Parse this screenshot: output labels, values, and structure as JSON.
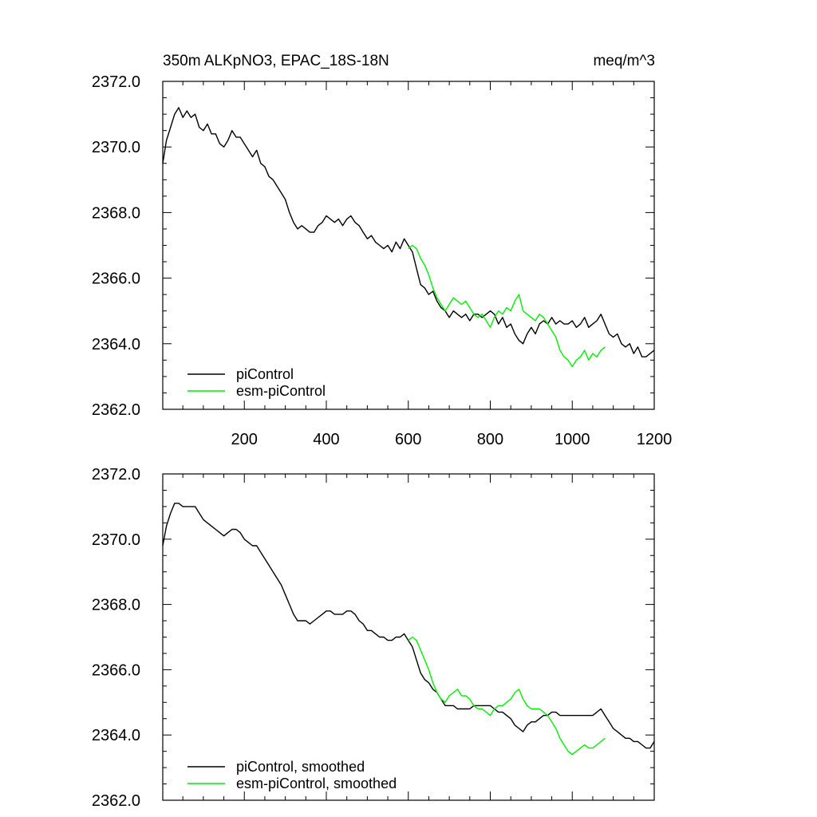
{
  "chart_data": [
    {
      "type": "line",
      "title": "350m ALKpNO3, EPAC_18S-18N",
      "units": "meq/m^3",
      "xlabel": "",
      "ylabel": "",
      "xlim": [
        1,
        1200
      ],
      "ylim": [
        2362.0,
        2372.0
      ],
      "x_ticks": [
        200,
        400,
        600,
        800,
        1000,
        1200
      ],
      "y_ticks": [
        2362.0,
        2364.0,
        2366.0,
        2368.0,
        2370.0,
        2372.0
      ],
      "x_tick_labels": [
        "200",
        "400",
        "600",
        "800",
        "1000",
        "1200"
      ],
      "y_tick_labels": [
        "2362.0",
        "2364.0",
        "2366.0",
        "2368.0",
        "2370.0",
        "2372.0"
      ],
      "grid": false,
      "legend_position": "bottom-left",
      "series": [
        {
          "name": "piControl",
          "color": "#000000",
          "x": [
            1,
            10,
            20,
            30,
            40,
            50,
            60,
            70,
            80,
            90,
            100,
            110,
            120,
            130,
            140,
            150,
            160,
            170,
            180,
            190,
            200,
            210,
            220,
            230,
            240,
            250,
            260,
            270,
            280,
            290,
            300,
            310,
            320,
            330,
            340,
            350,
            360,
            370,
            380,
            390,
            400,
            410,
            420,
            430,
            440,
            450,
            460,
            470,
            480,
            490,
            500,
            510,
            520,
            530,
            540,
            550,
            560,
            570,
            580,
            590,
            600,
            610,
            620,
            630,
            640,
            650,
            660,
            670,
            680,
            690,
            700,
            710,
            720,
            730,
            740,
            750,
            760,
            770,
            780,
            790,
            800,
            810,
            820,
            830,
            840,
            850,
            860,
            870,
            880,
            890,
            900,
            910,
            920,
            930,
            940,
            950,
            960,
            970,
            980,
            990,
            1000,
            1010,
            1020,
            1030,
            1040,
            1050,
            1060,
            1070,
            1080,
            1090,
            1100,
            1110,
            1120,
            1130,
            1140,
            1150,
            1160,
            1170,
            1180,
            1190,
            1200
          ],
          "values": [
            2369.5,
            2370.2,
            2370.6,
            2371.0,
            2371.2,
            2370.9,
            2371.1,
            2370.9,
            2371.0,
            2370.6,
            2370.5,
            2370.7,
            2370.4,
            2370.4,
            2370.1,
            2370.0,
            2370.2,
            2370.5,
            2370.3,
            2370.3,
            2370.1,
            2369.9,
            2369.7,
            2369.9,
            2369.5,
            2369.4,
            2369.1,
            2369.0,
            2368.8,
            2368.6,
            2368.4,
            2368.0,
            2367.7,
            2367.5,
            2367.6,
            2367.5,
            2367.4,
            2367.4,
            2367.6,
            2367.7,
            2367.9,
            2367.8,
            2367.7,
            2367.8,
            2367.6,
            2367.8,
            2367.9,
            2367.7,
            2367.6,
            2367.4,
            2367.2,
            2367.3,
            2367.1,
            2367.0,
            2366.9,
            2367.0,
            2366.8,
            2367.1,
            2366.9,
            2367.2,
            2367.0,
            2366.8,
            2366.3,
            2365.8,
            2365.7,
            2365.5,
            2365.6,
            2365.3,
            2365.1,
            2365.0,
            2364.8,
            2365.0,
            2364.9,
            2364.8,
            2364.9,
            2364.7,
            2364.9,
            2364.9,
            2364.8,
            2364.9,
            2365.0,
            2364.9,
            2364.6,
            2364.8,
            2364.5,
            2364.6,
            2364.3,
            2364.1,
            2364.0,
            2364.3,
            2364.5,
            2364.3,
            2364.6,
            2364.7,
            2364.6,
            2364.8,
            2364.6,
            2364.7,
            2364.6,
            2364.6,
            2364.7,
            2364.5,
            2364.6,
            2364.8,
            2364.5,
            2364.6,
            2364.7,
            2364.9,
            2364.6,
            2364.3,
            2364.2,
            2364.3,
            2364.0,
            2363.9,
            2364.0,
            2363.7,
            2363.9,
            2363.6,
            2363.6,
            2363.7,
            2363.8
          ]
        },
        {
          "name": "esm-piControl",
          "color": "#00ee00",
          "x": [
            600,
            610,
            620,
            630,
            640,
            650,
            660,
            670,
            680,
            690,
            700,
            710,
            720,
            730,
            740,
            750,
            760,
            770,
            780,
            790,
            800,
            810,
            820,
            830,
            840,
            850,
            860,
            870,
            880,
            890,
            900,
            910,
            920,
            930,
            940,
            950,
            960,
            970,
            980,
            990,
            1000,
            1010,
            1020,
            1030,
            1040,
            1050,
            1060,
            1070,
            1080
          ],
          "values": [
            2366.9,
            2367.0,
            2366.9,
            2366.6,
            2366.4,
            2366.1,
            2365.7,
            2365.4,
            2365.2,
            2365.0,
            2365.2,
            2365.4,
            2365.3,
            2365.2,
            2365.3,
            2365.1,
            2364.9,
            2364.8,
            2364.9,
            2364.7,
            2364.5,
            2364.8,
            2365.0,
            2364.9,
            2365.1,
            2365.0,
            2365.3,
            2365.5,
            2365.0,
            2364.9,
            2364.8,
            2364.7,
            2364.9,
            2364.8,
            2364.6,
            2364.4,
            2364.2,
            2363.8,
            2363.6,
            2363.5,
            2363.3,
            2363.5,
            2363.6,
            2363.8,
            2363.5,
            2363.7,
            2363.6,
            2363.8,
            2363.9
          ]
        }
      ]
    },
    {
      "type": "line",
      "title": "",
      "xlabel": "",
      "ylabel": "",
      "xlim": [
        1,
        1200
      ],
      "ylim": [
        2362.0,
        2372.0
      ],
      "y_ticks": [
        2362.0,
        2364.0,
        2366.0,
        2368.0,
        2370.0,
        2372.0
      ],
      "y_tick_labels": [
        "2362.0",
        "2364.0",
        "2366.0",
        "2368.0",
        "2370.0",
        "2372.0"
      ],
      "grid": false,
      "legend_position": "bottom-left",
      "series": [
        {
          "name": "piControl, smoothed",
          "color": "#000000",
          "x": [
            1,
            10,
            20,
            30,
            40,
            50,
            60,
            70,
            80,
            90,
            100,
            110,
            120,
            130,
            140,
            150,
            160,
            170,
            180,
            190,
            200,
            210,
            220,
            230,
            240,
            250,
            260,
            270,
            280,
            290,
            300,
            310,
            320,
            330,
            340,
            350,
            360,
            370,
            380,
            390,
            400,
            410,
            420,
            430,
            440,
            450,
            460,
            470,
            480,
            490,
            500,
            510,
            520,
            530,
            540,
            550,
            560,
            570,
            580,
            590,
            600,
            610,
            620,
            630,
            640,
            650,
            660,
            670,
            680,
            690,
            700,
            710,
            720,
            730,
            740,
            750,
            760,
            770,
            780,
            790,
            800,
            810,
            820,
            830,
            840,
            850,
            860,
            870,
            880,
            890,
            900,
            910,
            920,
            930,
            940,
            950,
            960,
            970,
            980,
            990,
            1000,
            1010,
            1020,
            1030,
            1040,
            1050,
            1060,
            1070,
            1080,
            1090,
            1100,
            1110,
            1120,
            1130,
            1140,
            1150,
            1160,
            1170,
            1180,
            1190,
            1200
          ],
          "values": [
            2369.8,
            2370.4,
            2370.8,
            2371.1,
            2371.1,
            2371.0,
            2371.0,
            2371.0,
            2371.0,
            2370.8,
            2370.6,
            2370.5,
            2370.4,
            2370.3,
            2370.2,
            2370.1,
            2370.2,
            2370.3,
            2370.3,
            2370.2,
            2370.0,
            2369.9,
            2369.8,
            2369.8,
            2369.6,
            2369.4,
            2369.2,
            2369.0,
            2368.8,
            2368.6,
            2368.3,
            2368.0,
            2367.7,
            2367.5,
            2367.5,
            2367.5,
            2367.4,
            2367.5,
            2367.6,
            2367.7,
            2367.8,
            2367.8,
            2367.7,
            2367.7,
            2367.7,
            2367.8,
            2367.8,
            2367.7,
            2367.5,
            2367.4,
            2367.2,
            2367.2,
            2367.1,
            2367.0,
            2367.0,
            2366.9,
            2366.9,
            2367.0,
            2367.0,
            2367.1,
            2366.9,
            2366.7,
            2366.3,
            2365.9,
            2365.7,
            2365.6,
            2365.4,
            2365.3,
            2365.1,
            2364.9,
            2364.9,
            2364.9,
            2364.8,
            2364.8,
            2364.8,
            2364.8,
            2364.9,
            2364.9,
            2364.9,
            2364.9,
            2364.9,
            2364.8,
            2364.7,
            2364.7,
            2364.6,
            2364.5,
            2364.3,
            2364.2,
            2364.1,
            2364.3,
            2364.4,
            2364.4,
            2364.5,
            2364.6,
            2364.6,
            2364.7,
            2364.7,
            2364.6,
            2364.6,
            2364.6,
            2364.6,
            2364.6,
            2364.6,
            2364.6,
            2364.6,
            2364.6,
            2364.7,
            2364.8,
            2364.6,
            2364.4,
            2364.2,
            2364.1,
            2364.0,
            2363.9,
            2363.9,
            2363.8,
            2363.8,
            2363.7,
            2363.6,
            2363.6,
            2363.8
          ]
        },
        {
          "name": "esm-piControl, smoothed",
          "color": "#00ee00",
          "x": [
            600,
            610,
            620,
            630,
            640,
            650,
            660,
            670,
            680,
            690,
            700,
            710,
            720,
            730,
            740,
            750,
            760,
            770,
            780,
            790,
            800,
            810,
            820,
            830,
            840,
            850,
            860,
            870,
            880,
            890,
            900,
            910,
            920,
            930,
            940,
            950,
            960,
            970,
            980,
            990,
            1000,
            1010,
            1020,
            1030,
            1040,
            1050,
            1060,
            1070,
            1080
          ],
          "values": [
            2366.9,
            2367.0,
            2366.9,
            2366.6,
            2366.3,
            2366.0,
            2365.6,
            2365.3,
            2365.1,
            2365.0,
            2365.2,
            2365.3,
            2365.4,
            2365.2,
            2365.2,
            2365.1,
            2364.9,
            2364.8,
            2364.8,
            2364.7,
            2364.6,
            2364.8,
            2364.9,
            2364.9,
            2365.0,
            2365.1,
            2365.3,
            2365.4,
            2365.1,
            2364.9,
            2364.8,
            2364.8,
            2364.8,
            2364.7,
            2364.6,
            2364.4,
            2364.2,
            2363.9,
            2363.7,
            2363.5,
            2363.4,
            2363.5,
            2363.6,
            2363.7,
            2363.6,
            2363.6,
            2363.7,
            2363.8,
            2363.9
          ]
        }
      ]
    }
  ]
}
